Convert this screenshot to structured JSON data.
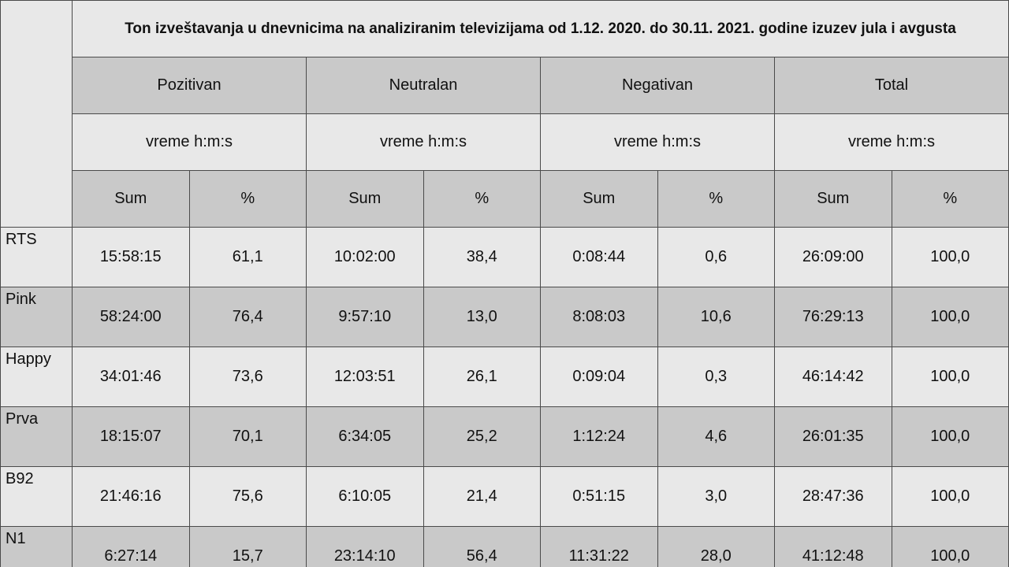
{
  "table": {
    "title": "Ton izveštavanja u dnevnicima na analiziranim televizijama od 1.12. 2020. do 30.11. 2021. godine izuzev jula i avgusta",
    "groups": [
      "Pozitivan",
      "Neutralan",
      "Negativan",
      "Total"
    ],
    "units": [
      "vreme h:m:s",
      "vreme h:m:s",
      "vreme h:m:s",
      "vreme h:m:s"
    ],
    "subheaders": [
      "Sum",
      "%",
      "Sum",
      "%",
      "Sum",
      "%",
      "Sum",
      "%"
    ],
    "rows": [
      {
        "label": "RTS",
        "cells": [
          "15:58:15",
          "61,1",
          "10:02:00",
          "38,4",
          "0:08:44",
          "0,6",
          "26:09:00",
          "100,0"
        ]
      },
      {
        "label": "Pink",
        "cells": [
          "58:24:00",
          "76,4",
          "9:57:10",
          "13,0",
          "8:08:03",
          "10,6",
          "76:29:13",
          "100,0"
        ]
      },
      {
        "label": "Happy",
        "cells": [
          "34:01:46",
          "73,6",
          "12:03:51",
          "26,1",
          "0:09:04",
          "0,3",
          "46:14:42",
          "100,0"
        ]
      },
      {
        "label": "Prva",
        "cells": [
          "18:15:07",
          "70,1",
          "6:34:05",
          "25,2",
          "1:12:24",
          "4,6",
          "26:01:35",
          "100,0"
        ]
      },
      {
        "label": "B92",
        "cells": [
          "21:46:16",
          "75,6",
          "6:10:05",
          "21,4",
          "0:51:15",
          "3,0",
          "28:47:36",
          "100,0"
        ]
      },
      {
        "label": "N1",
        "cells": [
          "6:27:14",
          "15,7",
          "23:14:10",
          "56,4",
          "11:31:22",
          "28,0",
          "41:12:48",
          "100,0"
        ]
      }
    ]
  }
}
